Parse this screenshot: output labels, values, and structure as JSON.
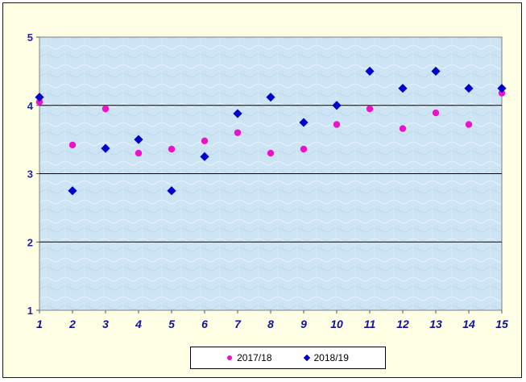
{
  "chart_data": {
    "type": "scatter",
    "x": [
      1,
      2,
      3,
      4,
      5,
      6,
      7,
      8,
      9,
      10,
      11,
      12,
      13,
      14,
      15
    ],
    "series": [
      {
        "name": "2017/18",
        "marker": "circle",
        "color": "#ee11cc",
        "values": [
          4.05,
          3.42,
          3.95,
          3.3,
          3.36,
          3.48,
          3.6,
          3.3,
          3.36,
          3.72,
          3.95,
          3.66,
          3.89,
          3.72,
          4.18
        ]
      },
      {
        "name": "2018/19",
        "marker": "diamond",
        "color": "#0000cc",
        "values": [
          4.12,
          2.75,
          3.37,
          3.5,
          2.75,
          3.25,
          3.88,
          4.12,
          3.75,
          4.0,
          4.5,
          4.25,
          4.5,
          4.25,
          4.25
        ]
      }
    ],
    "xticks": [
      "1",
      "2",
      "3",
      "4",
      "5",
      "6",
      "7",
      "8",
      "9",
      "10",
      "11",
      "12",
      "13",
      "14",
      "15"
    ],
    "yticks": [
      "1",
      "2",
      "3",
      "4",
      "5"
    ],
    "xlim": [
      1,
      15
    ],
    "ylim": [
      1,
      5
    ],
    "grid": "horizontal",
    "legend_position": "bottom",
    "colors": {
      "plot_background": "#cfe6f5",
      "frame_background": "#ffffe6"
    }
  }
}
